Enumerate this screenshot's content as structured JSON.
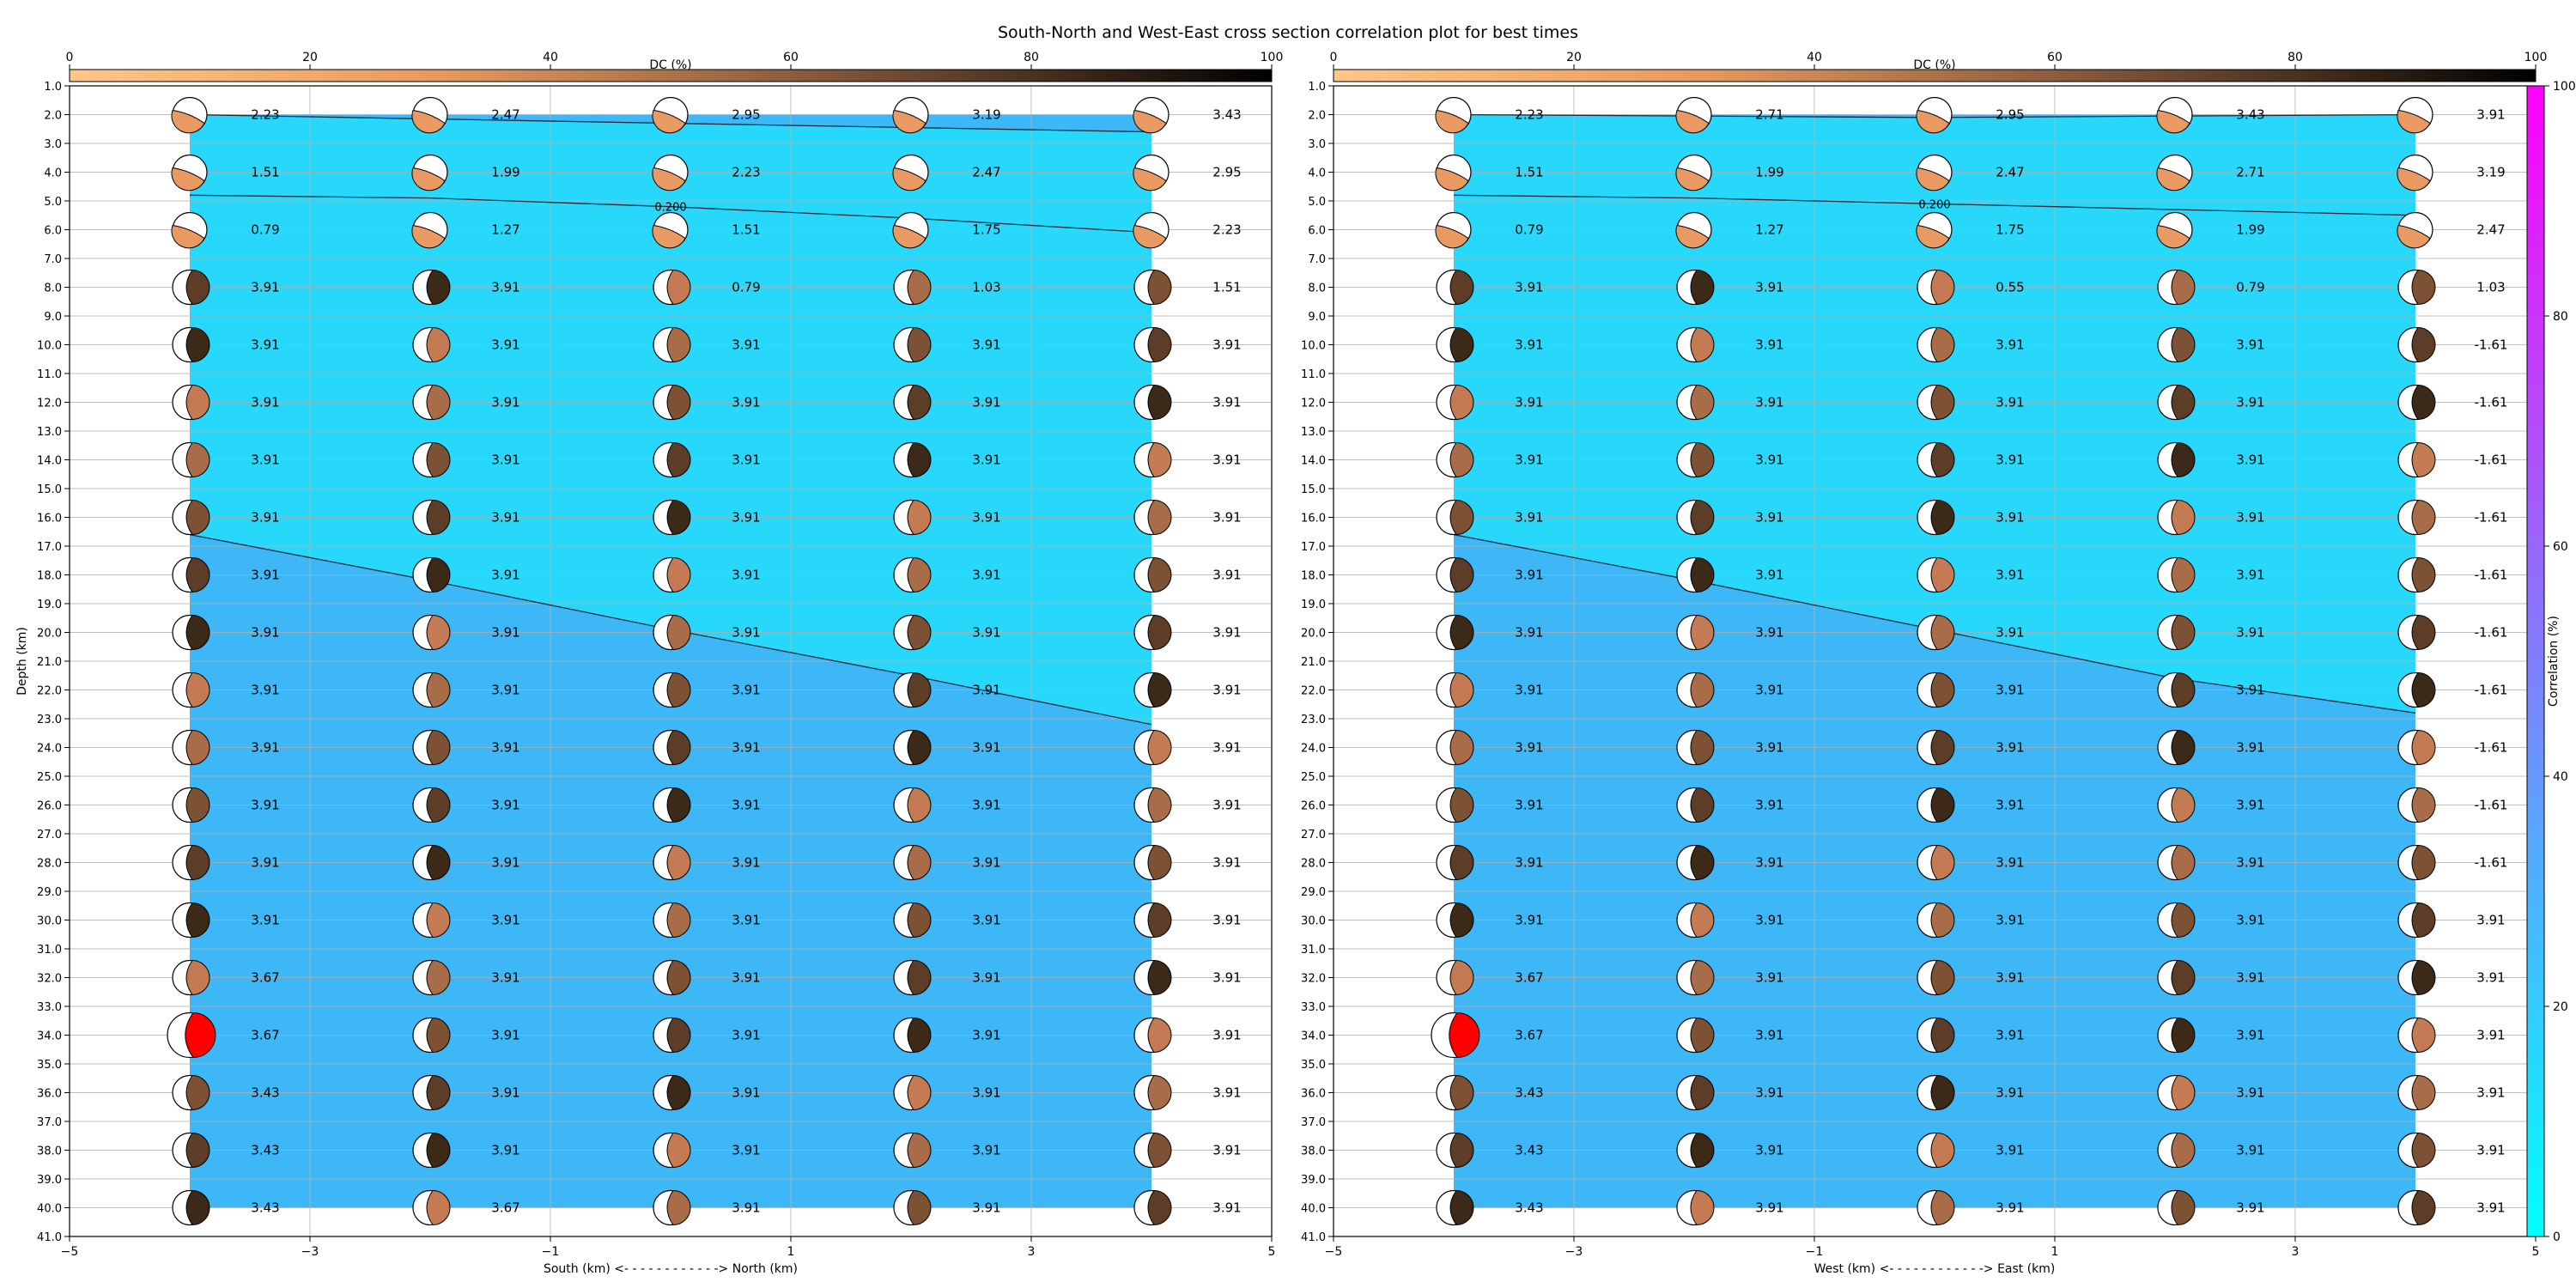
{
  "title": "South-North and West-East cross section correlation plot for best times",
  "dc_colorbar": {
    "label": "DC (%)",
    "ticks": [
      0,
      20,
      40,
      60,
      80,
      100
    ]
  },
  "corr_colorbar": {
    "label": "Correlation (%)",
    "ticks": [
      0,
      20,
      40,
      60,
      80,
      100
    ]
  },
  "chart_data": [
    {
      "type": "heatmap",
      "name": "south-north",
      "xlabel": "South (km) <- - - - - - - - - - - -> North (km)",
      "ylabel": "Depth (km)",
      "xlim": [
        -5,
        5
      ],
      "ylim": [
        41,
        1
      ],
      "x_ticks": [
        -5,
        -3,
        -1,
        1,
        3,
        5
      ],
      "x_positions": [
        -4,
        -2,
        0,
        2,
        4
      ],
      "depths": [
        2,
        4,
        6,
        8,
        10,
        12,
        14,
        16,
        18,
        20,
        22,
        24,
        26,
        28,
        30,
        32,
        34,
        36,
        38,
        40
      ],
      "contours": [
        {
          "level": "0.200",
          "label_x": 0,
          "points": [
            [
              -4,
              2.0
            ],
            [
              0,
              2.3
            ],
            [
              4,
              2.6
            ]
          ]
        },
        {
          "level": "0.200",
          "label_x": 0,
          "points": [
            [
              -4,
              4.8
            ],
            [
              -2,
              4.9
            ],
            [
              0,
              5.2
            ],
            [
              2,
              5.6
            ],
            [
              4,
              6.1
            ]
          ]
        },
        {
          "level": "0.200",
          "label_x": 0,
          "points": [
            [
              -4,
              16.6
            ],
            [
              -2,
              18.2
            ],
            [
              0,
              19.9
            ],
            [
              2,
              21.5
            ],
            [
              4,
              23.2
            ]
          ]
        }
      ],
      "max_marker": {
        "x": -4,
        "depth": 34
      },
      "values": [
        [
          "2.23",
          "2.47",
          "2.95",
          "3.19",
          "3.43"
        ],
        [
          "1.51",
          "1.99",
          "2.23",
          "2.47",
          "2.95"
        ],
        [
          "0.79",
          "1.27",
          "1.51",
          "1.75",
          "2.23"
        ],
        [
          "3.91",
          "3.91",
          "0.79",
          "1.03",
          "1.51"
        ],
        [
          "3.91",
          "3.91",
          "3.91",
          "3.91",
          "3.91"
        ],
        [
          "3.91",
          "3.91",
          "3.91",
          "3.91",
          "3.91"
        ],
        [
          "3.91",
          "3.91",
          "3.91",
          "3.91",
          "3.91"
        ],
        [
          "3.91",
          "3.91",
          "3.91",
          "3.91",
          "3.91"
        ],
        [
          "3.91",
          "3.91",
          "3.91",
          "3.91",
          "3.91"
        ],
        [
          "3.91",
          "3.91",
          "3.91",
          "3.91",
          "3.91"
        ],
        [
          "3.91",
          "3.91",
          "3.91",
          "3.91",
          "3.91"
        ],
        [
          "3.91",
          "3.91",
          "3.91",
          "3.91",
          "3.91"
        ],
        [
          "3.91",
          "3.91",
          "3.91",
          "3.91",
          "3.91"
        ],
        [
          "3.91",
          "3.91",
          "3.91",
          "3.91",
          "3.91"
        ],
        [
          "3.91",
          "3.91",
          "3.91",
          "3.91",
          "3.91"
        ],
        [
          "3.67",
          "3.91",
          "3.91",
          "3.91",
          "3.91"
        ],
        [
          "3.67",
          "3.91",
          "3.91",
          "3.91",
          "3.91"
        ],
        [
          "3.43",
          "3.91",
          "3.91",
          "3.91",
          "3.91"
        ],
        [
          "3.43",
          "3.91",
          "3.91",
          "3.91",
          "3.91"
        ],
        [
          "3.43",
          "3.67",
          "3.91",
          "3.91",
          "3.91"
        ]
      ]
    },
    {
      "type": "heatmap",
      "name": "west-east",
      "xlabel": "West (km) <- - - - - - - - - - - -> East (km)",
      "ylabel": "",
      "xlim": [
        -5,
        5
      ],
      "ylim": [
        41,
        1
      ],
      "x_ticks": [
        -5,
        -3,
        -1,
        1,
        3,
        5
      ],
      "x_positions": [
        -4,
        -2,
        0,
        2,
        4
      ],
      "depths": [
        2,
        4,
        6,
        8,
        10,
        12,
        14,
        16,
        18,
        20,
        22,
        24,
        26,
        28,
        30,
        32,
        34,
        36,
        38,
        40
      ],
      "contours": [
        {
          "level": "0.200",
          "label_x": 0,
          "points": [
            [
              -4,
              2.0
            ],
            [
              0,
              2.1
            ],
            [
              4,
              2.0
            ]
          ]
        },
        {
          "level": "0.200",
          "label_x": 0,
          "points": [
            [
              -4,
              4.8
            ],
            [
              -2,
              4.9
            ],
            [
              0,
              5.1
            ],
            [
              2,
              5.3
            ],
            [
              4,
              5.5
            ]
          ]
        },
        {
          "level": "0.200",
          "label_x": 0,
          "points": [
            [
              -4,
              16.6
            ],
            [
              -2,
              18.2
            ],
            [
              0,
              19.9
            ],
            [
              2,
              21.6
            ],
            [
              4,
              22.8
            ]
          ]
        }
      ],
      "max_marker": {
        "x": -4,
        "depth": 34
      },
      "values": [
        [
          "2.23",
          "2.71",
          "2.95",
          "3.43",
          "3.91"
        ],
        [
          "1.51",
          "1.99",
          "2.47",
          "2.71",
          "3.19"
        ],
        [
          "0.79",
          "1.27",
          "1.75",
          "1.99",
          "2.47"
        ],
        [
          "3.91",
          "3.91",
          "0.55",
          "0.79",
          "1.03"
        ],
        [
          "3.91",
          "3.91",
          "3.91",
          "3.91",
          "-1.61"
        ],
        [
          "3.91",
          "3.91",
          "3.91",
          "3.91",
          "-1.61"
        ],
        [
          "3.91",
          "3.91",
          "3.91",
          "3.91",
          "-1.61"
        ],
        [
          "3.91",
          "3.91",
          "3.91",
          "3.91",
          "-1.61"
        ],
        [
          "3.91",
          "3.91",
          "3.91",
          "3.91",
          "-1.61"
        ],
        [
          "3.91",
          "3.91",
          "3.91",
          "3.91",
          "-1.61"
        ],
        [
          "3.91",
          "3.91",
          "3.91",
          "3.91",
          "-1.61"
        ],
        [
          "3.91",
          "3.91",
          "3.91",
          "3.91",
          "-1.61"
        ],
        [
          "3.91",
          "3.91",
          "3.91",
          "3.91",
          "-1.61"
        ],
        [
          "3.91",
          "3.91",
          "3.91",
          "3.91",
          "-1.61"
        ],
        [
          "3.91",
          "3.91",
          "3.91",
          "3.91",
          "3.91"
        ],
        [
          "3.67",
          "3.91",
          "3.91",
          "3.91",
          "3.91"
        ],
        [
          "3.67",
          "3.91",
          "3.91",
          "3.91",
          "3.91"
        ],
        [
          "3.43",
          "3.91",
          "3.91",
          "3.91",
          "3.91"
        ],
        [
          "3.43",
          "3.91",
          "3.91",
          "3.91",
          "3.91"
        ],
        [
          "3.43",
          "3.91",
          "3.91",
          "3.91",
          "3.91"
        ]
      ]
    }
  ]
}
